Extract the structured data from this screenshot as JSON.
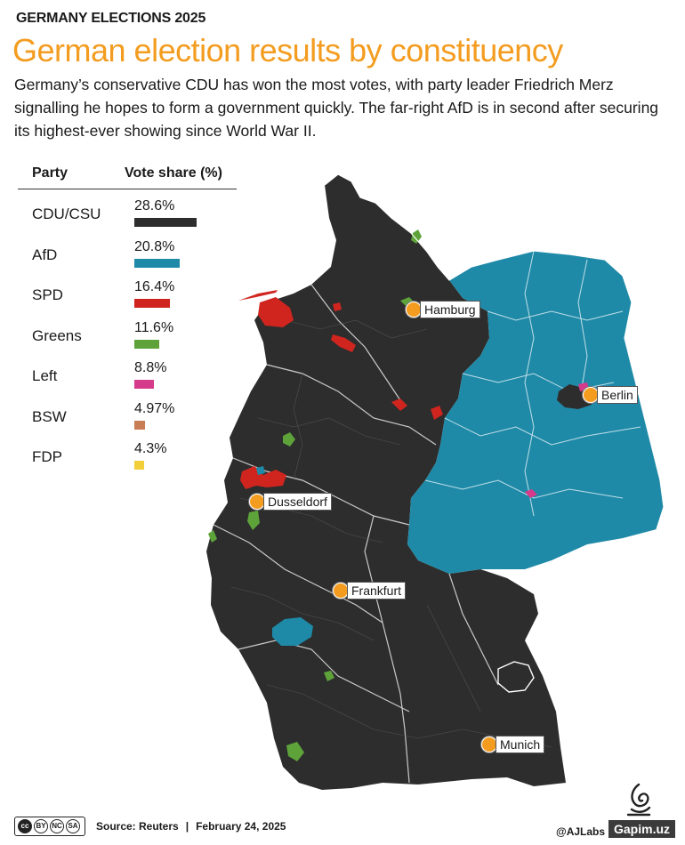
{
  "header": {
    "kicker": "GERMANY ELECTIONS 2025",
    "title": "German election results by constituency",
    "subtitle": "Germany’s conservative CDU has won the most votes, with party leader Friedrich Merz signalling he hopes to form a government quickly. The far-right AfD is in second after securing its highest-ever showing since World War II.",
    "title_color": "#f39c1f"
  },
  "legend": {
    "col_party": "Party",
    "col_share": "Vote share (%)",
    "parties": [
      {
        "name": "CDU/CSU",
        "share_label": "28.6%",
        "share": 28.6,
        "color": "#2d2d2d"
      },
      {
        "name": "AfD",
        "share_label": "20.8%",
        "share": 20.8,
        "color": "#1f8aa8"
      },
      {
        "name": "SPD",
        "share_label": "16.4%",
        "share": 16.4,
        "color": "#d0251f"
      },
      {
        "name": "Greens",
        "share_label": "11.6%",
        "share": 11.6,
        "color": "#5ea33a"
      },
      {
        "name": "Left",
        "share_label": "8.8%",
        "share": 8.8,
        "color": "#d63a8a"
      },
      {
        "name": "BSW",
        "share_label": "4.97%",
        "share": 4.97,
        "color": "#c97d54"
      },
      {
        "name": "FDP",
        "share_label": "4.3%",
        "share": 4.3,
        "color": "#f2cf3a"
      }
    ]
  },
  "cities": [
    {
      "id": "hamburg",
      "name": "Hamburg"
    },
    {
      "id": "berlin",
      "name": "Berlin"
    },
    {
      "id": "dusseldorf",
      "name": "Dusseldorf"
    },
    {
      "id": "frankfurt",
      "name": "Frankfurt"
    },
    {
      "id": "munich",
      "name": "Munich"
    }
  ],
  "map": {
    "west_color": "#2d2d2d",
    "east_color": "#1f8aa8",
    "city_marker_color": "#f39c1f"
  },
  "footer": {
    "license_icons": [
      "BY",
      "NC",
      "SA"
    ],
    "source": "Source: Reuters",
    "separator": "|",
    "date": "February 24, 2025",
    "credit": "@AJLabs",
    "watermark": "Gapim.uz"
  }
}
